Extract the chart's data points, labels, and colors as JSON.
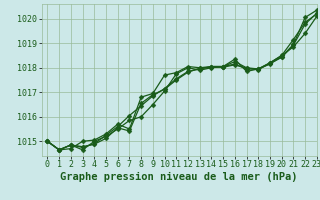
{
  "background_color": "#cce8e8",
  "plot_bg_color": "#cce8e8",
  "grid_color": "#99bb99",
  "line_color": "#1a5c1a",
  "marker_color": "#1a5c1a",
  "title": "Graphe pression niveau de la mer (hPa)",
  "xlim": [
    -0.5,
    23
  ],
  "ylim": [
    1014.4,
    1020.6
  ],
  "yticks": [
    1015,
    1016,
    1017,
    1018,
    1019,
    1020
  ],
  "xticks": [
    0,
    1,
    2,
    3,
    4,
    5,
    6,
    7,
    8,
    9,
    10,
    11,
    12,
    13,
    14,
    15,
    16,
    17,
    18,
    19,
    20,
    21,
    22,
    23
  ],
  "series": [
    [
      1015.0,
      1014.65,
      1014.85,
      1014.65,
      1015.0,
      1015.2,
      1015.5,
      1015.85,
      1016.0,
      1016.5,
      1017.05,
      1017.75,
      1018.0,
      1017.9,
      1018.0,
      1018.05,
      1018.25,
      1018.0,
      1017.95,
      1018.15,
      1018.45,
      1018.95,
      1020.05,
      1020.35
    ],
    [
      1015.0,
      1014.65,
      1014.85,
      1014.75,
      1014.9,
      1015.25,
      1015.6,
      1016.05,
      1016.45,
      1016.85,
      1017.15,
      1017.55,
      1017.85,
      1017.95,
      1018.05,
      1018.05,
      1018.15,
      1017.95,
      1017.95,
      1018.2,
      1018.5,
      1019.15,
      1019.85,
      1020.2
    ],
    [
      1015.0,
      1014.65,
      1014.7,
      1015.0,
      1015.05,
      1015.3,
      1015.7,
      1015.5,
      1016.8,
      1016.95,
      1017.7,
      1017.8,
      1018.05,
      1018.0,
      1018.05,
      1018.05,
      1018.35,
      1017.85,
      1017.95,
      1018.2,
      1018.5,
      1018.85,
      1019.4,
      1020.1
    ],
    [
      1015.0,
      1014.65,
      1014.85,
      1014.78,
      1014.88,
      1015.12,
      1015.55,
      1015.42,
      1016.55,
      1016.9,
      1017.12,
      1017.5,
      1017.82,
      1017.98,
      1018.02,
      1018.02,
      1018.12,
      1017.98,
      1017.92,
      1018.18,
      1018.42,
      1018.92,
      1019.78,
      1020.22
    ]
  ],
  "title_fontsize": 7.5,
  "tick_fontsize": 6.0,
  "line_width": 0.9,
  "marker_size": 2.5,
  "fig_width": 3.2,
  "fig_height": 2.0,
  "dpi": 100
}
